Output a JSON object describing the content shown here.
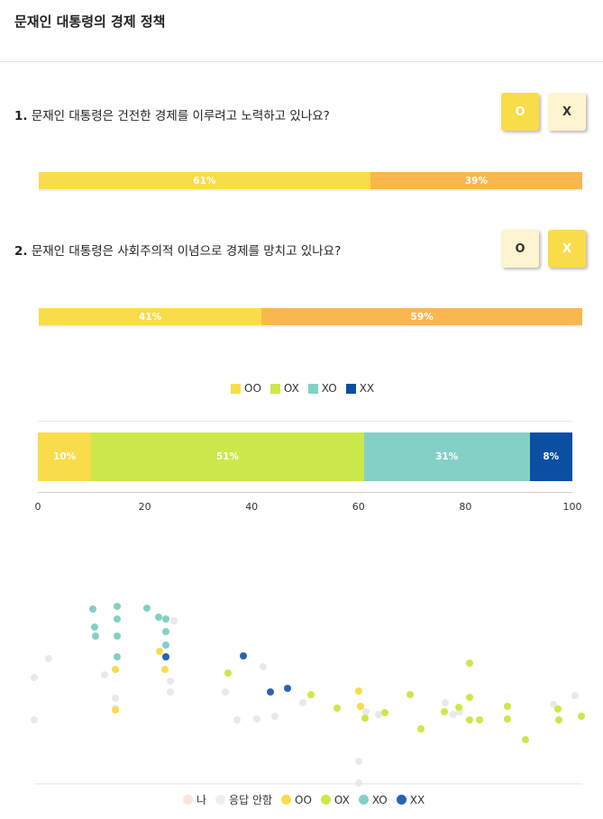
{
  "header": {
    "title": "문재인 대통령의 경제 정책"
  },
  "questions": [
    {
      "number": "1.",
      "text": "문재인 대통령은 건전한 경제를 이루려고 노력하고 있나요?",
      "buttons": [
        {
          "label": "O",
          "selected": true
        },
        {
          "label": "X",
          "selected": false
        }
      ],
      "results": [
        {
          "label": "61%",
          "percent": 61,
          "color": "#f9dc4a"
        },
        {
          "label": "39%",
          "percent": 39,
          "color": "#f8b84e"
        }
      ]
    },
    {
      "number": "2.",
      "text": "문재인 대통령은 사회주의적 이념으로 경제를 망치고 있나요?",
      "buttons": [
        {
          "label": "O",
          "selected": false
        },
        {
          "label": "X",
          "selected": true
        }
      ],
      "results": [
        {
          "label": "41%",
          "percent": 41,
          "color": "#f9dc4a"
        },
        {
          "label": "59%",
          "percent": 59,
          "color": "#f8b84e"
        }
      ]
    }
  ],
  "chart_data": [
    {
      "type": "bar",
      "stacked": true,
      "orientation": "horizontal",
      "legend": [
        {
          "name": "OO",
          "color": "#f9dc4a"
        },
        {
          "name": "OX",
          "color": "#cbe84a"
        },
        {
          "name": "XO",
          "color": "#84d0c6"
        },
        {
          "name": "XX",
          "color": "#0b4fa3"
        }
      ],
      "series": [
        {
          "name": "OO",
          "value": 10,
          "label": "10%",
          "color": "#f9dc4a"
        },
        {
          "name": "OX",
          "value": 51,
          "label": "51%",
          "color": "#cbe84a"
        },
        {
          "name": "XO",
          "value": 31,
          "label": "31%",
          "color": "#84d0c6"
        },
        {
          "name": "XX",
          "value": 8,
          "label": "8%",
          "color": "#0b4fa3"
        }
      ],
      "xlim": [
        0,
        100
      ],
      "xticks": [
        "0",
        "20",
        "40",
        "60",
        "80",
        "100"
      ],
      "legend_position": "top-center"
    },
    {
      "type": "scatter",
      "legend": [
        {
          "name": "나",
          "color": "#fbe3dc"
        },
        {
          "name": "응답 안함",
          "color": "#eeeeee"
        },
        {
          "name": "OO",
          "color": "#f9dc4a"
        },
        {
          "name": "OX",
          "color": "#cbe84a"
        },
        {
          "name": "XO",
          "color": "#84d0c6"
        },
        {
          "name": "XX",
          "color": "#2a62b5"
        }
      ],
      "legend_position": "bottom-center",
      "series": [
        {
          "name": "응답 안함",
          "color": "#e9e9e9",
          "points": [
            [
              38,
              752
            ],
            [
              38,
              799
            ],
            [
              54,
              731
            ],
            [
              116,
              749
            ],
            [
              128,
              775
            ],
            [
              128,
              786
            ],
            [
              189,
              756
            ],
            [
              189,
              768
            ],
            [
              193,
              689
            ],
            [
              250,
              768
            ],
            [
              263,
              799
            ],
            [
              285,
              798
            ],
            [
              292,
              740
            ],
            [
              305,
              795
            ],
            [
              336,
              780
            ],
            [
              398,
              845
            ],
            [
              398,
              869
            ],
            [
              406,
              790
            ],
            [
              420,
              793
            ],
            [
              494,
              780
            ],
            [
              503,
              793
            ],
            [
              510,
              790
            ],
            [
              614,
              782
            ],
            [
              638,
              772
            ]
          ]
        },
        {
          "name": "OO",
          "color": "#f9dc4a",
          "points": [
            [
              128,
              743
            ],
            [
              128,
              788
            ],
            [
              177,
              723
            ],
            [
              183,
              743
            ],
            [
              398,
              767
            ],
            [
              400,
              784
            ]
          ]
        },
        {
          "name": "OX",
          "color": "#cbe84a",
          "points": [
            [
              253,
              747
            ],
            [
              345,
              771
            ],
            [
              374,
              786
            ],
            [
              405,
              797
            ],
            [
              427,
              791
            ],
            [
              455,
              771
            ],
            [
              467,
              809
            ],
            [
              493,
              790
            ],
            [
              509,
              785
            ],
            [
              521,
              736
            ],
            [
              521,
              774
            ],
            [
              521,
              799
            ],
            [
              532,
              799
            ],
            [
              563,
              784
            ],
            [
              563,
              798
            ],
            [
              583,
              821
            ],
            [
              619,
              787
            ],
            [
              620,
              799
            ],
            [
              645,
              795
            ]
          ]
        },
        {
          "name": "XO",
          "color": "#84d0c6",
          "points": [
            [
              103,
              676
            ],
            [
              105,
              696
            ],
            [
              106,
              706
            ],
            [
              130,
              673
            ],
            [
              130,
              687
            ],
            [
              130,
              706
            ],
            [
              130,
              729
            ],
            [
              163,
              675
            ],
            [
              176,
              685
            ],
            [
              184,
              687
            ],
            [
              184,
              701
            ],
            [
              184,
              716
            ],
            [
              184,
              729
            ]
          ]
        },
        {
          "name": "XX",
          "color": "#2a62b5",
          "points": [
            [
              184,
              729
            ],
            [
              270,
              728
            ],
            [
              300,
              768
            ],
            [
              319,
              764
            ]
          ]
        }
      ]
    }
  ]
}
